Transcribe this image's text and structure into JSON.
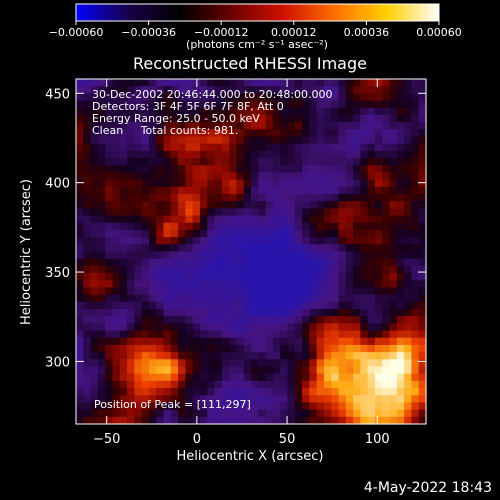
{
  "chart_data": {
    "type": "heatmap",
    "title": "Reconstructed RHESSI Image",
    "xlabel": "Heliocentric X (arcsec)",
    "ylabel": "Heliocentric Y (arcsec)",
    "xlim": [
      -67,
      127
    ],
    "ylim": [
      265,
      458
    ],
    "x_ticks": [
      -50,
      0,
      50,
      100
    ],
    "x_tick_labels": [
      "−50",
      "0",
      "50",
      "100"
    ],
    "y_ticks": [
      300,
      350,
      400,
      450
    ],
    "y_tick_labels": [
      "300",
      "350",
      "400",
      "450"
    ],
    "colorbar": {
      "range": [
        -0.0006,
        0.0006
      ],
      "ticks": [
        -0.0006,
        -0.00036,
        -0.00012,
        0.00012,
        0.00036,
        0.0006
      ],
      "tick_labels": [
        "−0.00060",
        "−0.00036",
        "−0.00012",
        "0.00012",
        "0.00036",
        "0.00060"
      ],
      "unit_label": "(photons cm⁻² s⁻¹ asec⁻²)",
      "colormap": [
        "#0000ff",
        "#1a004a",
        "#000000",
        "#6a0000",
        "#d01000",
        "#ff7000",
        "#ffd000",
        "#ffffff"
      ]
    },
    "annotations": [
      "30-Dec-2002 20:46:44.000 to 20:48:00.000",
      "Detectors: 3F 4F 5F 6F 7F 8F, Att 0",
      "Energy Range: 25.0 - 50.0 keV",
      "Clean     Total counts: 981."
    ],
    "peak_label": "Position of Peak = [111,297]",
    "peak_position": [
      111,
      297
    ],
    "grid": false
  },
  "footer": {
    "timestamp": "4-May-2022 18:43"
  }
}
